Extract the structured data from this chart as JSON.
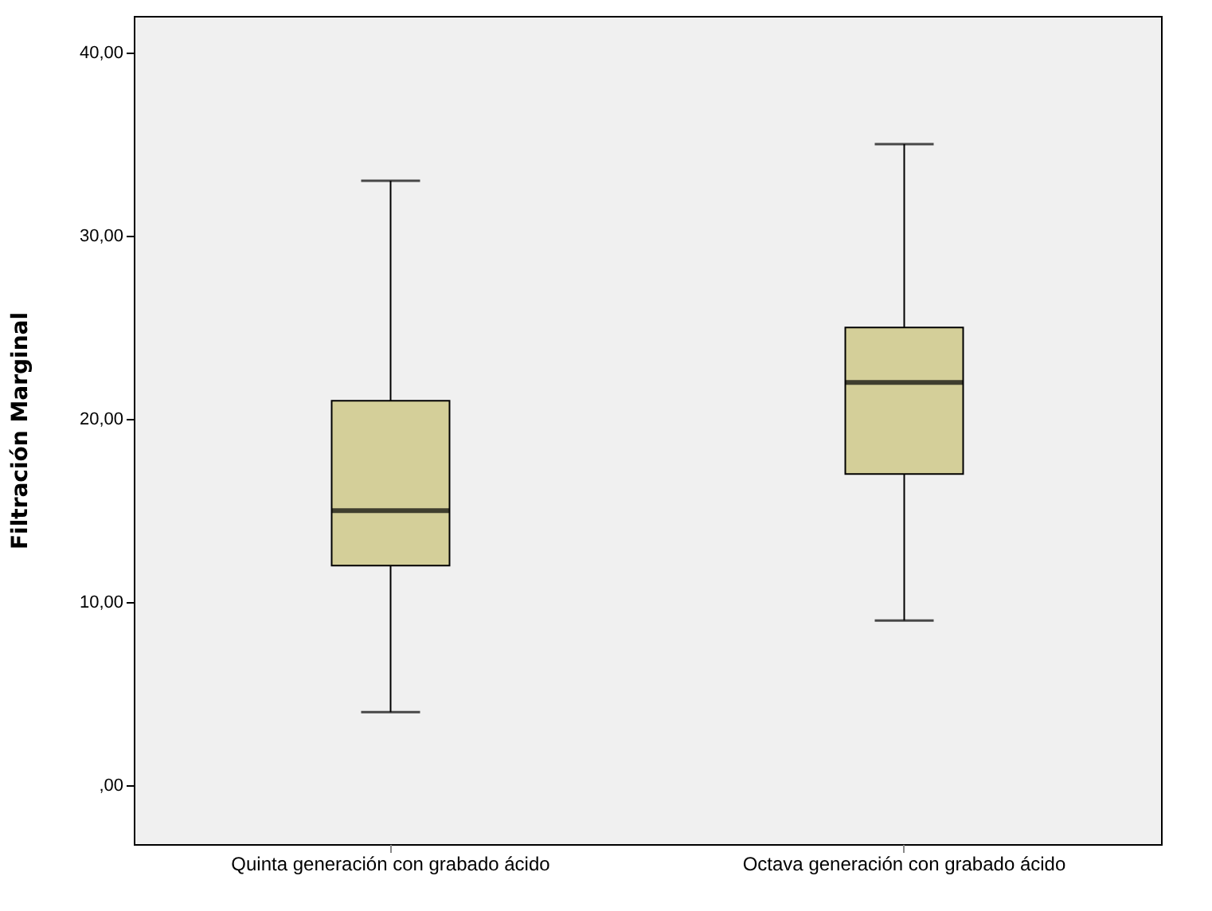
{
  "chart_data": {
    "type": "box",
    "ylabel": "Filtración Marginal",
    "categories": [
      "Quinta generación con grabado ácido",
      "Octava generación con grabado ácido"
    ],
    "boxes": [
      {
        "low": 4,
        "q1": 12,
        "median": 15,
        "q3": 21,
        "high": 33
      },
      {
        "low": 9,
        "q1": 17,
        "median": 22,
        "q3": 25,
        "high": 35
      }
    ],
    "colors": [
      "#d4cf99",
      "#d4cf99"
    ],
    "ylim": [
      -3.2,
      42
    ],
    "yticks": [
      {
        "value": 0,
        "label": ",00"
      },
      {
        "value": 10,
        "label": "10,00"
      },
      {
        "value": 20,
        "label": "20,00"
      },
      {
        "value": 30,
        "label": "30,00"
      },
      {
        "value": 40,
        "label": "40,00"
      }
    ],
    "grid": false
  }
}
